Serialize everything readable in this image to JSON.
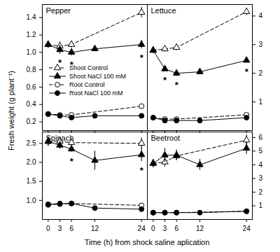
{
  "x_label": "Time (h) from shock saline aplication",
  "y_label": "Fresh weight (g plant⁻¹)",
  "chart_data": [
    {
      "type": "line",
      "title": "Pepper",
      "x": [
        0,
        3,
        6,
        12,
        24
      ],
      "xlim": [
        -1.5,
        25.5
      ],
      "xticks": [
        0,
        3,
        6,
        12,
        24
      ],
      "ylim": [
        0.1,
        1.55
      ],
      "yticks": [
        0.2,
        0.4,
        0.6,
        0.8,
        {
          "value": 1,
          "label": "1.0"
        },
        1.2,
        1.4
      ],
      "tick_labels": "y",
      "legend": "left",
      "series": [
        {
          "name": "Shoot Control",
          "color": "#000000",
          "marker": "triangle-open",
          "line_style": "dashed",
          "values": [
            1.09,
            1.07,
            1.09,
            null,
            1.46
          ],
          "errors": [
            0.04,
            0.05,
            0.04,
            null,
            0.06
          ]
        },
        {
          "name": "Shoot NaCl 100 mM",
          "color": "#000000",
          "marker": "triangle",
          "line_style": "solid",
          "values": [
            1.09,
            1.03,
            1.0,
            1.04,
            1.09
          ],
          "errors": [
            0.04,
            0.05,
            0.04,
            0.03,
            0.05
          ],
          "marks": [
            null,
            "*",
            "*",
            null,
            "*"
          ]
        },
        {
          "name": "Root Control",
          "color": "#000000",
          "marker": "circle-open",
          "line_style": "dashed",
          "values": [
            0.29,
            0.28,
            0.28,
            null,
            0.38
          ],
          "errors": [
            0.02,
            0.01,
            0.01,
            null,
            0.02
          ]
        },
        {
          "name": "Root NaCl 100 mM",
          "color": "#000000",
          "marker": "circle",
          "line_style": "solid",
          "values": [
            0.29,
            0.27,
            0.25,
            0.27,
            0.27
          ],
          "errors": [
            0.02,
            0.01,
            0.01,
            0.01,
            0.01
          ]
        }
      ]
    },
    {
      "type": "line",
      "title": "Lettuce",
      "x": [
        0,
        3,
        6,
        12,
        24
      ],
      "xlim": [
        -1.5,
        25.5
      ],
      "xticks": [
        0,
        3,
        6,
        12,
        24
      ],
      "ylim": [
        0,
        4.4
      ],
      "yticks": [
        1,
        2,
        3,
        4
      ],
      "tick_labels": "y",
      "series": [
        {
          "name": "Shoot Control",
          "color": "#000000",
          "marker": "triangle-open",
          "line_style": "dashed",
          "values": [
            2.8,
            2.85,
            2.9,
            null,
            4.15
          ],
          "errors": [
            0.1,
            0.1,
            0.1,
            null,
            0.12
          ]
        },
        {
          "name": "Shoot NaCl 100 mM",
          "color": "#000000",
          "marker": "triangle",
          "line_style": "solid",
          "values": [
            2.8,
            2.15,
            2.0,
            2.05,
            2.45
          ],
          "errors": [
            0.1,
            0.08,
            0.1,
            0.06,
            0.08
          ],
          "marks": [
            null,
            "*",
            "*",
            null,
            "*"
          ]
        },
        {
          "name": "Root Control",
          "color": "#000000",
          "marker": "circle-open",
          "line_style": "dashed",
          "values": [
            0.45,
            0.4,
            0.4,
            null,
            0.55
          ],
          "errors": [
            0.03,
            0.03,
            0.03,
            null,
            0.03
          ]
        },
        {
          "name": "Root NaCl 100 mM",
          "color": "#000000",
          "marker": "circle",
          "line_style": "solid",
          "values": [
            0.45,
            0.35,
            0.35,
            0.35,
            0.45
          ],
          "errors": [
            0.03,
            0.03,
            0.03,
            0.03,
            0.03
          ]
        }
      ]
    },
    {
      "type": "line",
      "title": "Spinach",
      "x": [
        0,
        3,
        6,
        12,
        24
      ],
      "xlim": [
        -1.5,
        25.5
      ],
      "xticks": [
        0,
        3,
        6,
        12,
        24
      ],
      "ylim": [
        0.5,
        2.8
      ],
      "yticks": [
        {
          "value": 1,
          "label": "1.0"
        },
        1.5,
        {
          "value": 2,
          "label": "2.0"
        },
        2.5
      ],
      "series": [
        {
          "name": "Shoot Control",
          "color": "#000000",
          "marker": "triangle-open",
          "line_style": "dashed",
          "values": [
            2.55,
            2.55,
            2.52,
            null,
            2.5
          ],
          "errors": [
            0.12,
            0.1,
            0.1,
            null,
            0.15
          ]
        },
        {
          "name": "Shoot NaCl 100 mM",
          "color": "#000000",
          "marker": "triangle",
          "line_style": "solid",
          "values": [
            2.55,
            2.45,
            2.35,
            2.05,
            2.2
          ],
          "errors": [
            0.12,
            0.1,
            0.08,
            0.25,
            0.18
          ],
          "marks": [
            null,
            null,
            "*",
            null,
            "*"
          ]
        },
        {
          "name": "Root Control",
          "color": "#000000",
          "marker": "circle-open",
          "line_style": "dashed",
          "values": [
            0.88,
            0.9,
            0.92,
            null,
            0.87
          ],
          "errors": [
            0.05,
            0.05,
            0.05,
            null,
            0.05
          ]
        },
        {
          "name": "Root NaCl 100 mM",
          "color": "#000000",
          "marker": "circle",
          "line_style": "solid",
          "values": [
            0.9,
            0.92,
            0.92,
            0.8,
            0.77
          ],
          "errors": [
            0.05,
            0.05,
            0.05,
            0.05,
            0.05
          ]
        }
      ]
    },
    {
      "type": "line",
      "title": "Beetroot",
      "x": [
        0,
        3,
        6,
        12,
        24
      ],
      "xlim": [
        -1.5,
        25.5
      ],
      "xticks": [
        0,
        3,
        6,
        12,
        24
      ],
      "ylim": [
        0,
        6.4
      ],
      "yticks": [
        1,
        2,
        3,
        4,
        5,
        6
      ],
      "series": [
        {
          "name": "Shoot Control",
          "color": "#000000",
          "marker": "triangle-open",
          "line_style": "dashed",
          "values": [
            4.1,
            4.2,
            4.65,
            null,
            5.8
          ],
          "errors": [
            0.3,
            0.35,
            0.3,
            null,
            0.4
          ]
        },
        {
          "name": "Shoot NaCl 100 mM",
          "color": "#000000",
          "marker": "triangle",
          "line_style": "solid",
          "values": [
            4.1,
            4.7,
            4.7,
            4.0,
            5.2
          ],
          "errors": [
            0.3,
            0.5,
            0.4,
            0.4,
            0.45
          ]
        },
        {
          "name": "Root Control",
          "color": "#000000",
          "marker": "circle-open",
          "line_style": "dashed",
          "values": [
            0.5,
            0.5,
            0.5,
            null,
            0.6
          ],
          "errors": [
            0.05,
            0.05,
            0.05,
            null,
            0.05
          ]
        },
        {
          "name": "Root NaCl 100 mM",
          "color": "#000000",
          "marker": "circle",
          "line_style": "solid",
          "values": [
            0.5,
            0.5,
            0.5,
            0.5,
            0.6
          ],
          "errors": [
            0.05,
            0.05,
            0.05,
            0.05,
            0.05
          ]
        }
      ]
    }
  ]
}
